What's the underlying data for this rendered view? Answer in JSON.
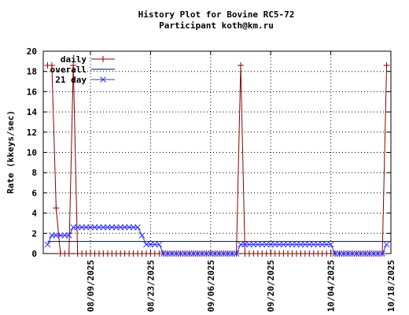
{
  "chart_data": {
    "type": "line",
    "title": "History Plot for Bovine RC5-72",
    "subtitle": "Participant koth@km.ru",
    "y_label": "Rate (kkeys/sec)",
    "x": [
      "2025-07-30",
      "2025-07-31",
      "2025-08-01",
      "2025-08-02",
      "2025-08-03",
      "2025-08-04",
      "2025-08-05",
      "2025-08-06",
      "2025-08-07",
      "2025-08-08",
      "2025-08-09",
      "2025-08-10",
      "2025-08-11",
      "2025-08-12",
      "2025-08-13",
      "2025-08-14",
      "2025-08-15",
      "2025-08-16",
      "2025-08-17",
      "2025-08-18",
      "2025-08-19",
      "2025-08-20",
      "2025-08-21",
      "2025-08-22",
      "2025-08-23",
      "2025-08-24",
      "2025-08-25",
      "2025-08-26",
      "2025-08-27",
      "2025-08-28",
      "2025-08-29",
      "2025-08-30",
      "2025-08-31",
      "2025-09-01",
      "2025-09-02",
      "2025-09-03",
      "2025-09-04",
      "2025-09-05",
      "2025-09-06",
      "2025-09-07",
      "2025-09-08",
      "2025-09-09",
      "2025-09-10",
      "2025-09-11",
      "2025-09-12",
      "2025-09-13",
      "2025-09-14",
      "2025-09-15",
      "2025-09-16",
      "2025-09-17",
      "2025-09-18",
      "2025-09-19",
      "2025-09-20",
      "2025-09-21",
      "2025-09-22",
      "2025-09-23",
      "2025-09-24",
      "2025-09-25",
      "2025-09-26",
      "2025-09-27",
      "2025-09-28",
      "2025-09-29",
      "2025-09-30",
      "2025-10-01",
      "2025-10-02",
      "2025-10-03",
      "2025-10-04",
      "2025-10-05",
      "2025-10-06",
      "2025-10-07",
      "2025-10-08",
      "2025-10-09",
      "2025-10-10",
      "2025-10-11",
      "2025-10-12",
      "2025-10-13",
      "2025-10-14",
      "2025-10-15",
      "2025-10-16",
      "2025-10-17"
    ],
    "series": [
      {
        "name": "daily",
        "color": "#8b0000",
        "marker": "plus",
        "values": [
          18.6,
          18.6,
          4.5,
          0,
          0,
          0,
          18.6,
          0,
          0,
          0,
          0,
          0,
          0,
          0,
          0,
          0,
          0,
          0,
          0,
          0,
          0,
          0,
          0,
          0,
          0,
          0,
          0,
          0,
          0,
          0,
          0,
          0,
          0,
          0,
          0,
          0,
          0,
          0,
          0,
          0,
          0,
          0,
          0,
          0,
          0,
          18.6,
          0,
          0,
          0,
          0,
          0,
          0,
          0,
          0,
          0,
          0,
          0,
          0,
          0,
          0,
          0,
          0,
          0,
          0,
          0,
          0,
          0,
          0,
          0,
          0,
          0,
          0,
          0,
          0,
          0,
          0,
          0,
          0,
          0,
          18.6
        ]
      },
      {
        "name": "overall",
        "color": "#00008b",
        "marker": "none",
        "x": [
          "2025-07-30",
          "2025-10-18"
        ],
        "values": [
          1.2,
          1.2
        ]
      },
      {
        "name": "21 day",
        "color": "#3333ff",
        "marker": "cross",
        "values": [
          0.9,
          1.8,
          1.8,
          1.8,
          1.8,
          1.8,
          2.6,
          2.6,
          2.6,
          2.6,
          2.6,
          2.6,
          2.6,
          2.6,
          2.6,
          2.6,
          2.6,
          2.6,
          2.6,
          2.6,
          2.6,
          2.6,
          1.8,
          0.9,
          0.9,
          0.9,
          0.9,
          0,
          0,
          0,
          0,
          0,
          0,
          0,
          0,
          0,
          0,
          0,
          0,
          0,
          0,
          0,
          0,
          0,
          0,
          0.9,
          0.9,
          0.9,
          0.9,
          0.9,
          0.9,
          0.9,
          0.9,
          0.9,
          0.9,
          0.9,
          0.9,
          0.9,
          0.9,
          0.9,
          0.9,
          0.9,
          0.9,
          0.9,
          0.9,
          0.9,
          0.9,
          0,
          0,
          0,
          0,
          0,
          0,
          0,
          0,
          0,
          0,
          0,
          0,
          0.9
        ]
      }
    ],
    "xlim": [
      "2025-07-29",
      "2025-10-18"
    ],
    "xticks": [
      {
        "value": "2025-08-09",
        "label": "08/09/2025"
      },
      {
        "value": "2025-08-23",
        "label": "08/23/2025"
      },
      {
        "value": "2025-09-06",
        "label": "09/06/2025"
      },
      {
        "value": "2025-09-20",
        "label": "09/20/2025"
      },
      {
        "value": "2025-10-04",
        "label": "10/04/2025"
      },
      {
        "value": "2025-10-18",
        "label": "10/18/2025"
      }
    ],
    "ylim": [
      0,
      20
    ],
    "yticks": [
      0,
      2,
      4,
      6,
      8,
      10,
      12,
      14,
      16,
      18,
      20
    ],
    "grid": true,
    "legend": "top-left"
  }
}
